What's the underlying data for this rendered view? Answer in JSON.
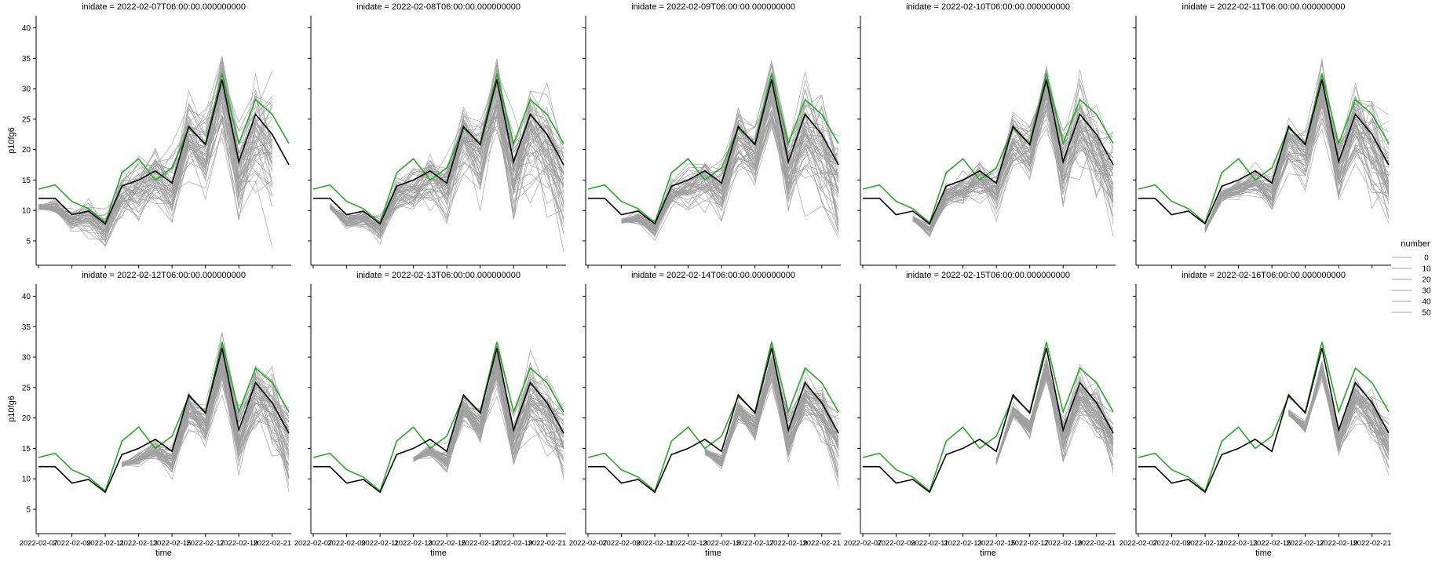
{
  "chart_data": {
    "type": "line",
    "facet_by": "inidate",
    "xlabel": "time",
    "ylabel": "p10fg6",
    "ylim": [
      1,
      42
    ],
    "yticks": [
      5,
      10,
      15,
      20,
      25,
      30,
      35,
      40
    ],
    "x_tick_labels": [
      "2022-02-07",
      "2022-02-09",
      "2022-02-11",
      "2022-02-13",
      "2022-02-15",
      "2022-02-17",
      "2022-02-19",
      "2022-02-21"
    ],
    "x_dates": [
      "2022-02-07",
      "2022-02-08",
      "2022-02-09",
      "2022-02-10",
      "2022-02-11",
      "2022-02-12",
      "2022-02-13",
      "2022-02-14",
      "2022-02-15",
      "2022-02-16",
      "2022-02-17",
      "2022-02-18",
      "2022-02-19",
      "2022-02-20",
      "2022-02-21",
      "2022-02-22"
    ],
    "panels": [
      {
        "title": "inidate = 2022-02-07T06:00:00.000000000",
        "start_index": 0,
        "end_index": 14
      },
      {
        "title": "inidate = 2022-02-08T06:00:00.000000000",
        "start_index": 1,
        "end_index": 15
      },
      {
        "title": "inidate = 2022-02-09T06:00:00.000000000",
        "start_index": 2,
        "end_index": 15
      },
      {
        "title": "inidate = 2022-02-10T06:00:00.000000000",
        "start_index": 3,
        "end_index": 15
      },
      {
        "title": "inidate = 2022-02-11T06:00:00.000000000",
        "start_index": 4,
        "end_index": 15
      },
      {
        "title": "inidate = 2022-02-12T06:00:00.000000000",
        "start_index": 5,
        "end_index": 15
      },
      {
        "title": "inidate = 2022-02-13T06:00:00.000000000",
        "start_index": 6,
        "end_index": 15
      },
      {
        "title": "inidate = 2022-02-14T06:00:00.000000000",
        "start_index": 7,
        "end_index": 15
      },
      {
        "title": "inidate = 2022-02-15T06:00:00.000000000",
        "start_index": 8,
        "end_index": 15
      },
      {
        "title": "inidate = 2022-02-16T06:00:00.000000000",
        "start_index": 9,
        "end_index": 15
      }
    ],
    "reference_series": [
      {
        "color": "#22aa22",
        "values": [
          13.5,
          14.2,
          11.5,
          10.3,
          8.0,
          16.2,
          18.5,
          15.0,
          17.0,
          23.5,
          21.0,
          32.5,
          21.0,
          28.2,
          25.8,
          21.0
        ]
      },
      {
        "color": "#000000",
        "values": [
          12.0,
          12.0,
          9.3,
          9.9,
          7.8,
          14.0,
          15.0,
          16.5,
          14.5,
          23.8,
          20.8,
          31.5,
          18.0,
          25.8,
          22.5,
          17.5
        ]
      }
    ],
    "ensemble": {
      "color": "#a0a0a0",
      "member_count": 51
    },
    "legend": {
      "title": "number",
      "entries": [
        "0",
        "10",
        "20",
        "30",
        "40",
        "50"
      ],
      "color": "#a0a0a0",
      "placement": "right"
    }
  }
}
